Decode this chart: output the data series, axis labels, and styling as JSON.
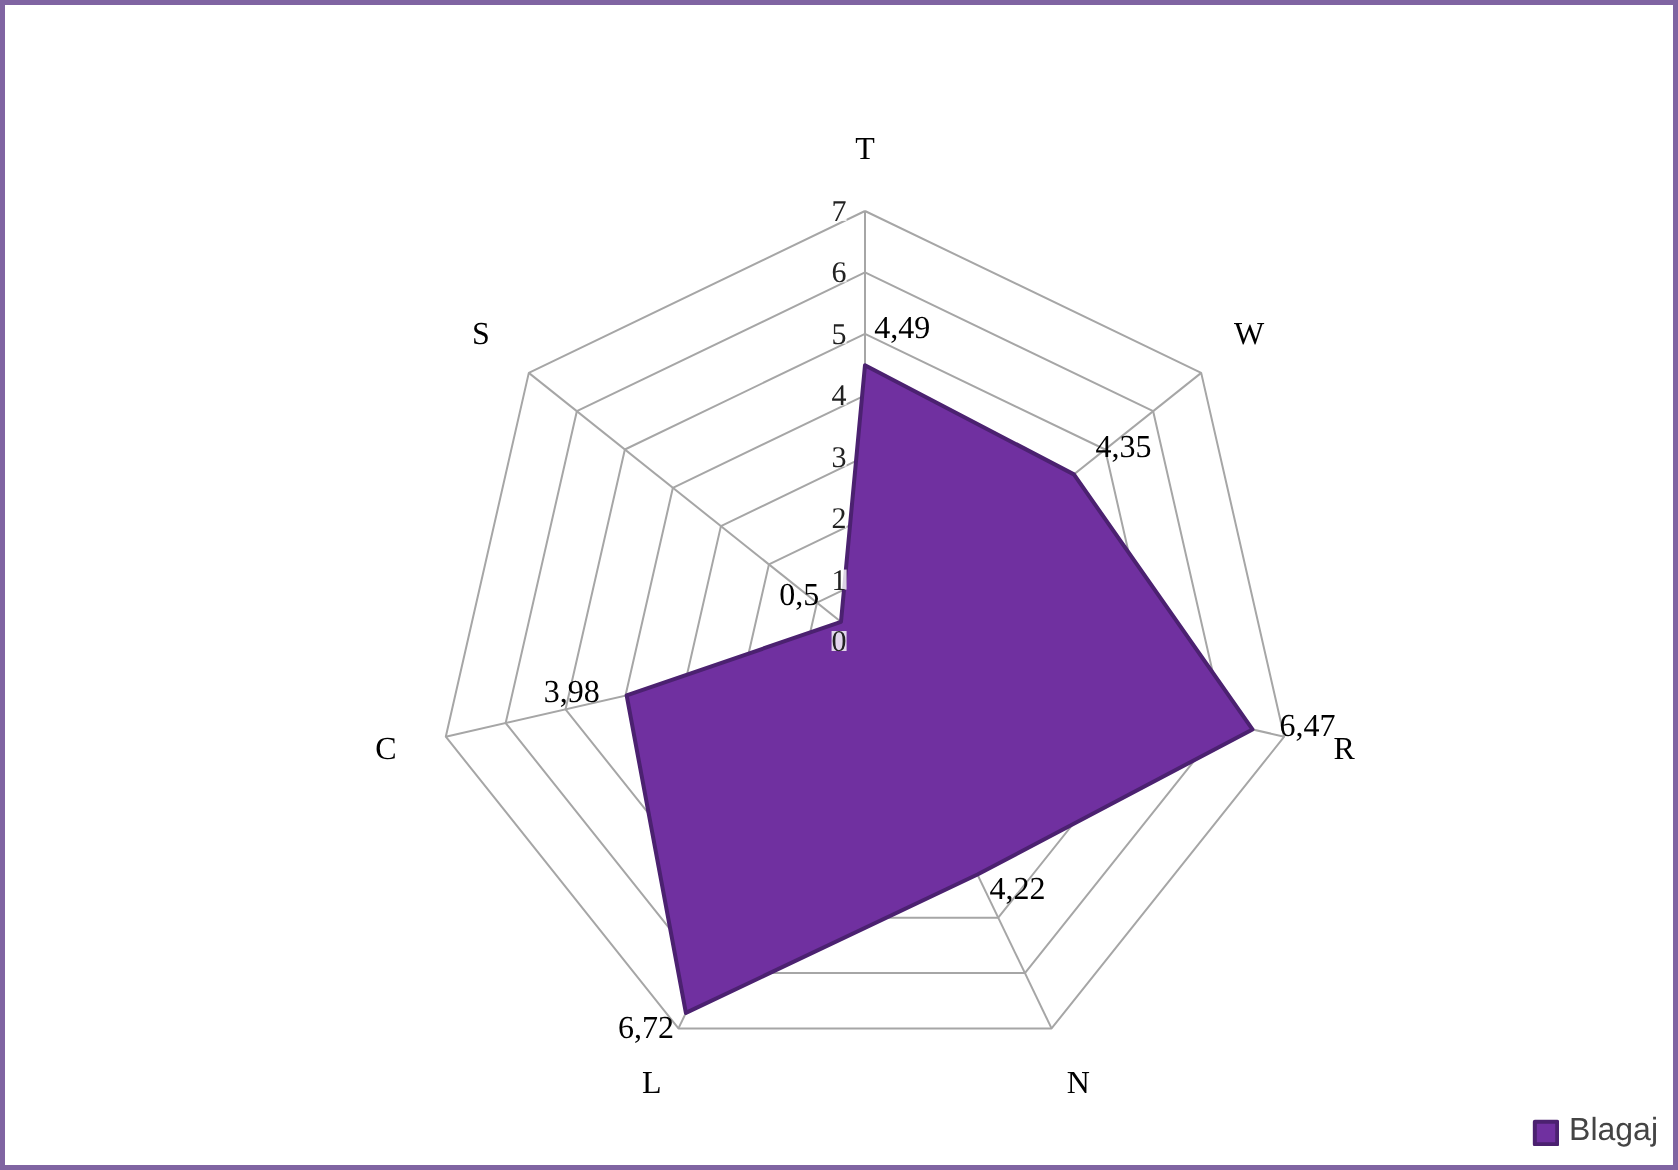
{
  "chart_data": {
    "type": "radar",
    "categories": [
      "T",
      "W",
      "R",
      "N",
      "L",
      "C",
      "S"
    ],
    "series": [
      {
        "name": "Blagaj",
        "color": "#7030a0",
        "values": [
          4.49,
          4.35,
          6.47,
          4.22,
          6.72,
          3.98,
          0.5
        ],
        "value_labels": [
          "4,49",
          "4,35",
          "6,47",
          "4,22",
          "6,72",
          "3,98",
          "0,5"
        ]
      }
    ],
    "ylim": [
      0,
      7
    ],
    "yticks": [
      0,
      1,
      2,
      3,
      4,
      5,
      6,
      7
    ],
    "grid": true,
    "legend": "bottom right"
  }
}
